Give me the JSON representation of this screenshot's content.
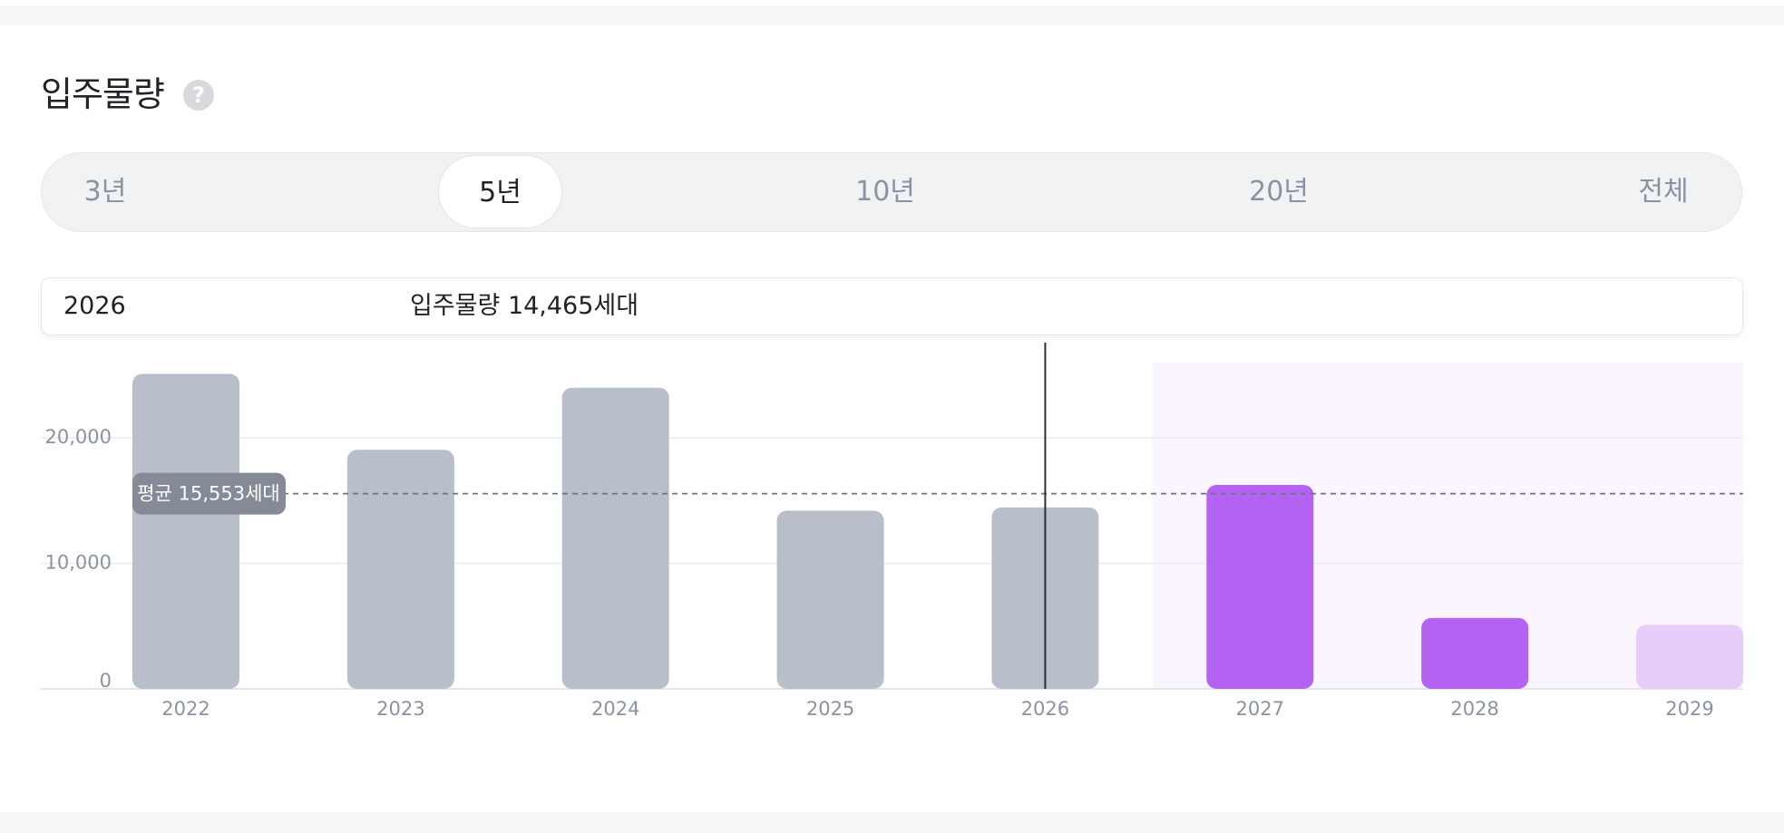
{
  "header": {
    "title": "입주물량",
    "help_icon": "question-circle-icon"
  },
  "period_tabs": [
    {
      "label": "3년",
      "active": false
    },
    {
      "label": "5년",
      "active": true
    },
    {
      "label": "10년",
      "active": false
    },
    {
      "label": "20년",
      "active": false
    },
    {
      "label": "전체",
      "active": false
    }
  ],
  "selected": {
    "year": "2026",
    "value_text": "입주물량 14,465세대"
  },
  "chart_data": {
    "type": "bar",
    "categories": [
      "2022",
      "2023",
      "2024",
      "2025",
      "2026",
      "2027",
      "2028",
      "2029"
    ],
    "values": [
      25100,
      19050,
      24000,
      14200,
      14465,
      16250,
      5650,
      5100
    ],
    "bar_colors": [
      "#b8bfca",
      "#b8bfca",
      "#b8bfca",
      "#b8bfca",
      "#b8bfca",
      "#b362f2",
      "#b362f2",
      "#e8cdfb"
    ],
    "forecast_start_index": 5,
    "forecast_band_color": "#faf5fe",
    "y_ticks": [
      0,
      10000,
      20000
    ],
    "y_tick_labels": [
      "0",
      "10,000",
      "20,000"
    ],
    "ylim": [
      0,
      26000
    ],
    "average": 15553,
    "average_label": "평균 15,553세대",
    "selected_index": 4,
    "grid": true
  }
}
